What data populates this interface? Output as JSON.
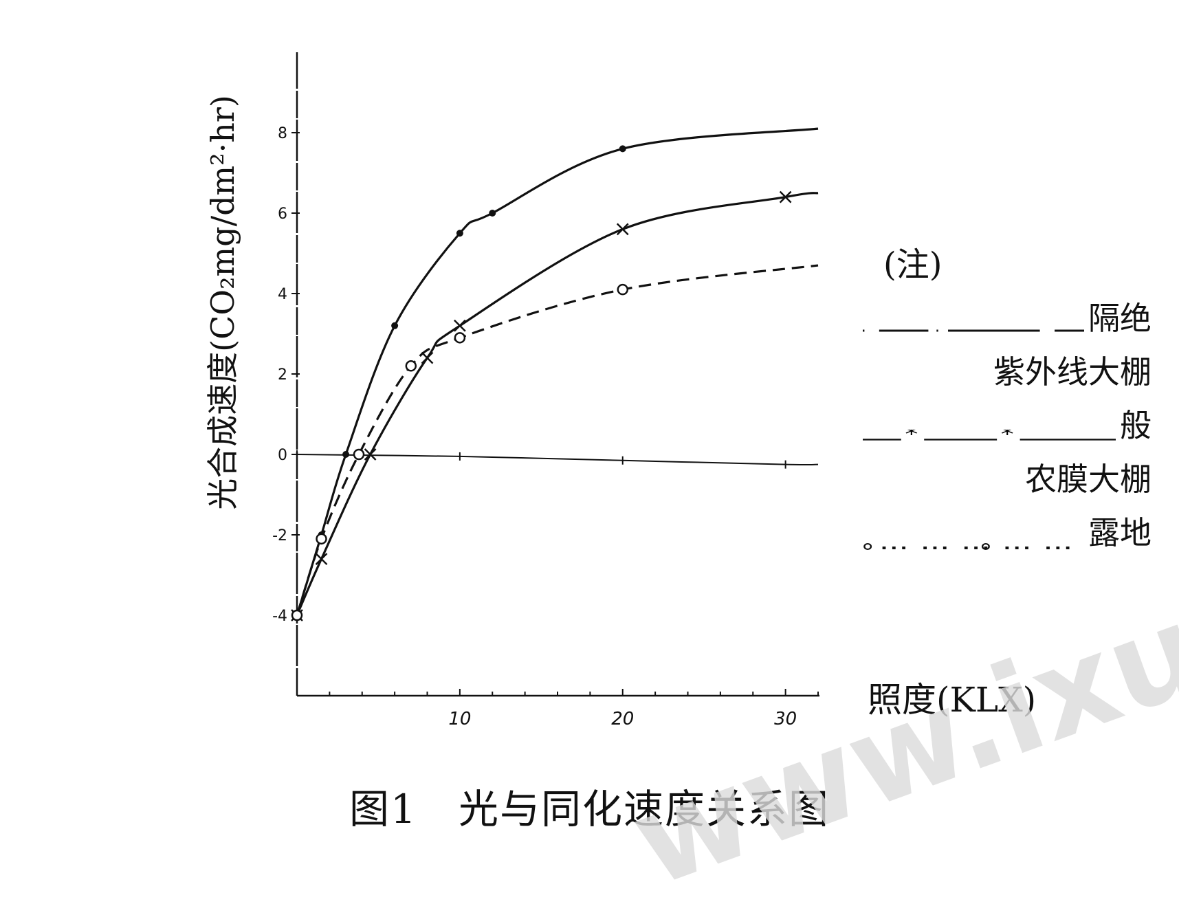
{
  "chart_data": {
    "type": "line",
    "title": "图1　光与同化速度关系图",
    "ylabel": "光合成速度(CO₂mg/dm²·hr)",
    "xlabel": "照度(KLX)",
    "xlim": [
      0,
      32
    ],
    "ylim": [
      -6,
      10
    ],
    "x_ticks": [
      10,
      20,
      30
    ],
    "y_ticks": [
      -4,
      -2,
      0,
      2,
      4,
      6,
      8
    ],
    "grid": false,
    "legend_position": "right",
    "legend_title": "(注)",
    "series": [
      {
        "name": "隔绝紫外线大棚",
        "style": "solid",
        "marker": "dot",
        "legend_line1": "隔绝",
        "legend_line2": "紫外线大棚",
        "x": [
          0,
          1.5,
          3,
          6,
          10,
          12,
          20,
          32
        ],
        "y": [
          -4,
          -2,
          0,
          3.2,
          5.5,
          6.0,
          7.6,
          8.1
        ]
      },
      {
        "name": "一般农膜大棚",
        "style": "solid",
        "marker": "x",
        "legend_line1": "般",
        "legend_line2": "农膜大棚",
        "x": [
          0,
          1.5,
          4.5,
          8,
          10,
          20,
          30,
          32
        ],
        "y": [
          -4,
          -2.6,
          0,
          2.4,
          3.2,
          5.6,
          6.4,
          6.5
        ]
      },
      {
        "name": "露地",
        "style": "dashed",
        "marker": "circle",
        "legend_line1": "露地",
        "x": [
          0,
          1.5,
          3.8,
          7,
          10,
          20,
          32
        ],
        "y": [
          -4,
          -2.1,
          0,
          2.2,
          2.9,
          4.1,
          4.7
        ]
      },
      {
        "name": "zero",
        "style": "thin",
        "marker": "tick",
        "x": [
          0,
          10,
          20,
          30,
          32
        ],
        "y": [
          0,
          -0.05,
          -0.15,
          -0.25,
          -0.25
        ]
      }
    ]
  },
  "watermark": "www.ixue"
}
